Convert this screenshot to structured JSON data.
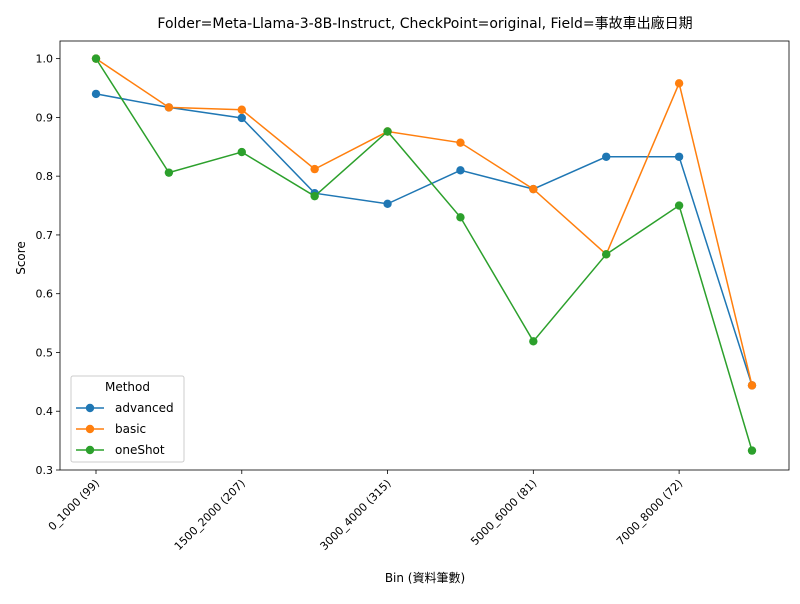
{
  "chart_data": {
    "type": "line",
    "title": "Folder=Meta-Llama-3-8B-Instruct, CheckPoint=original, Field=事故車出廠日期",
    "xlabel": "Bin (資料筆數)",
    "ylabel": "Score",
    "ylim": [
      0.3,
      1.03
    ],
    "yticks": [
      "0.3",
      "0.4",
      "0.5",
      "0.6",
      "0.7",
      "0.8",
      "0.9",
      "1.0"
    ],
    "x_points": 10,
    "xtick_labels": [
      {
        "index": 0,
        "label": "0_1000 (99)"
      },
      {
        "index": 2,
        "label": "1500_2000 (207)"
      },
      {
        "index": 4,
        "label": "3000_4000 (315)"
      },
      {
        "index": 6,
        "label": "5000_6000 (81)"
      },
      {
        "index": 8,
        "label": "7000_8000 (72)"
      }
    ],
    "grid": false,
    "legend": {
      "title": "Method",
      "position": "lower-left"
    },
    "series": [
      {
        "name": "advanced",
        "color": "#1f77b4",
        "values": [
          0.94,
          0.917,
          0.899,
          0.771,
          0.753,
          0.81,
          0.778,
          0.833,
          0.833,
          0.444
        ]
      },
      {
        "name": "basic",
        "color": "#ff7f0e",
        "values": [
          1.0,
          0.917,
          0.913,
          0.812,
          0.876,
          0.857,
          0.778,
          0.667,
          0.958,
          0.444
        ]
      },
      {
        "name": "oneShot",
        "color": "#2ca02c",
        "values": [
          1.0,
          0.806,
          0.841,
          0.766,
          0.876,
          0.73,
          0.519,
          0.667,
          0.75,
          0.333
        ]
      }
    ]
  }
}
